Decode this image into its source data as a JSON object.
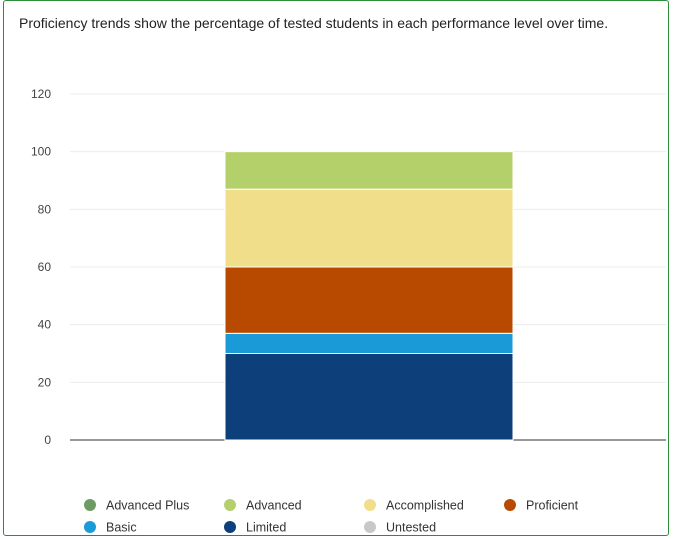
{
  "description": "Proficiency trends show the percentage of tested students in each performance level over time.",
  "chart_data": {
    "type": "bar",
    "stacked": true,
    "categories": [
      ""
    ],
    "ylim": [
      0,
      120
    ],
    "yticks": [
      0,
      20,
      40,
      60,
      80,
      100,
      120
    ],
    "grid": true,
    "legend_position": "bottom",
    "series": [
      {
        "name": "Limited",
        "values": [
          30
        ],
        "color": "#0d3f7a"
      },
      {
        "name": "Basic",
        "values": [
          7
        ],
        "color": "#1a9ad6"
      },
      {
        "name": "Proficient",
        "values": [
          23
        ],
        "color": "#b84a00"
      },
      {
        "name": "Accomplished",
        "values": [
          27
        ],
        "color": "#f1de8a"
      },
      {
        "name": "Advanced",
        "values": [
          13
        ],
        "color": "#b4d06b"
      },
      {
        "name": "Advanced Plus",
        "values": [
          0
        ],
        "color": "#6e9a64"
      },
      {
        "name": "Untested",
        "values": [
          0
        ],
        "color": "#c8c8c8"
      }
    ],
    "legend": [
      {
        "name": "Advanced Plus",
        "color": "#6e9a64"
      },
      {
        "name": "Advanced",
        "color": "#b4d06b"
      },
      {
        "name": "Accomplished",
        "color": "#f1de8a"
      },
      {
        "name": "Proficient",
        "color": "#b84a00"
      },
      {
        "name": "Basic",
        "color": "#1a9ad6"
      },
      {
        "name": "Limited",
        "color": "#0d3f7a"
      },
      {
        "name": "Untested",
        "color": "#c8c8c8"
      }
    ]
  }
}
